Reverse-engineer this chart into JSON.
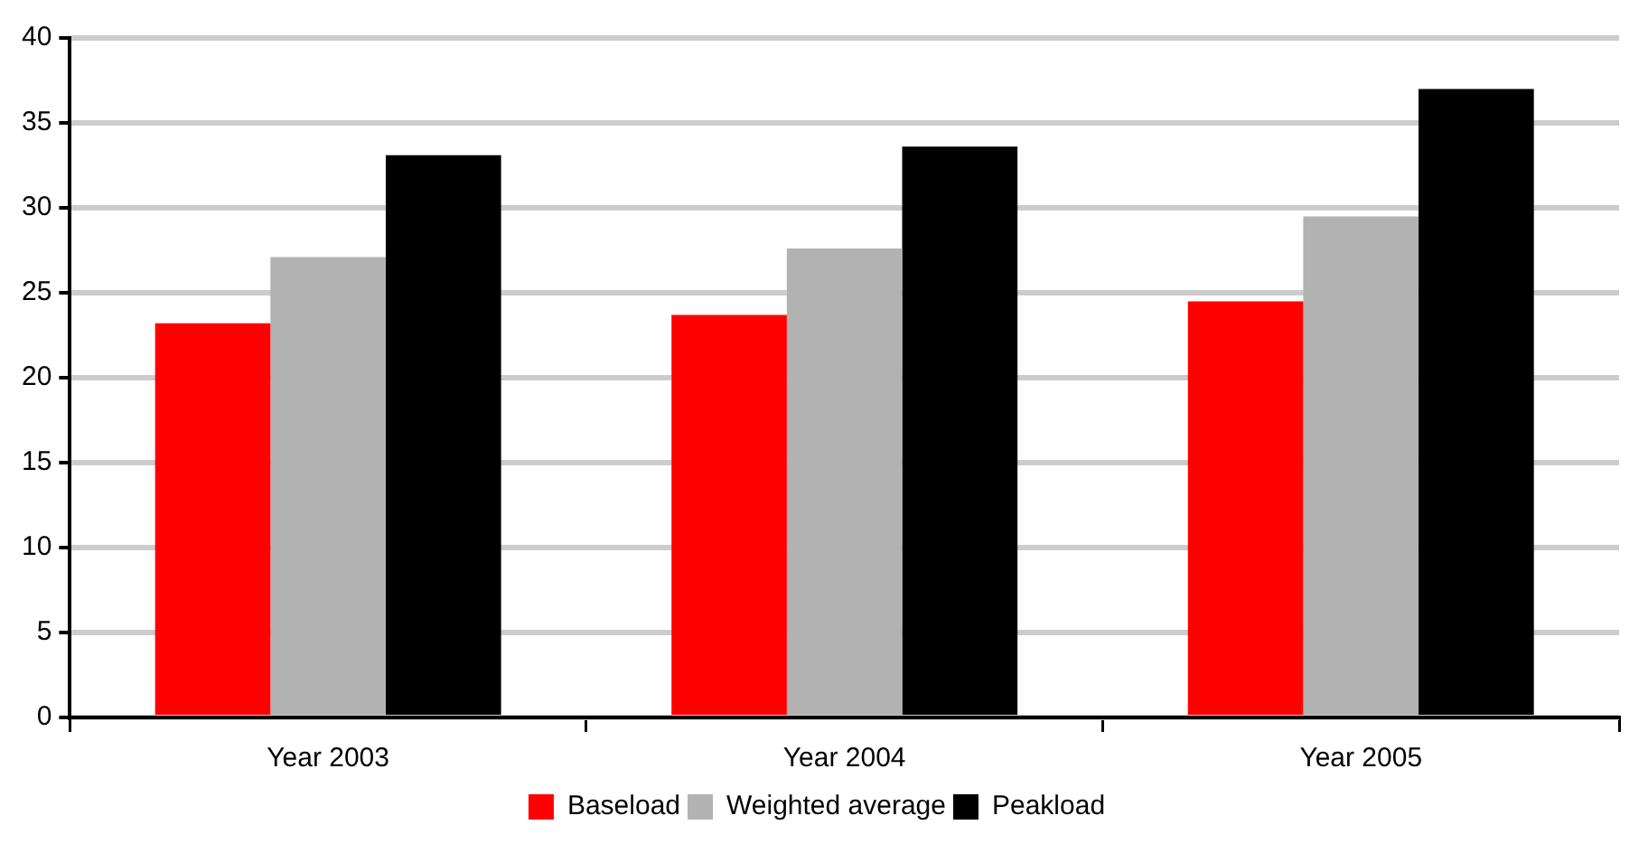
{
  "chart_data": {
    "type": "bar",
    "categories": [
      "Year 2003",
      "Year 2004",
      "Year 2005"
    ],
    "series": [
      {
        "name": "Baseload",
        "color": "#ff0000",
        "values": [
          23.2,
          23.7,
          24.5
        ]
      },
      {
        "name": "Weighted average",
        "color": "#b2b2b2",
        "values": [
          27.1,
          27.6,
          29.5
        ]
      },
      {
        "name": "Peakload",
        "color": "#000000",
        "values": [
          33.1,
          33.6,
          37.0
        ]
      }
    ],
    "ylim": [
      0,
      40
    ],
    "yticks": [
      0,
      5,
      10,
      15,
      20,
      25,
      30,
      35,
      40
    ],
    "grid": "y",
    "legend": "bottom"
  }
}
